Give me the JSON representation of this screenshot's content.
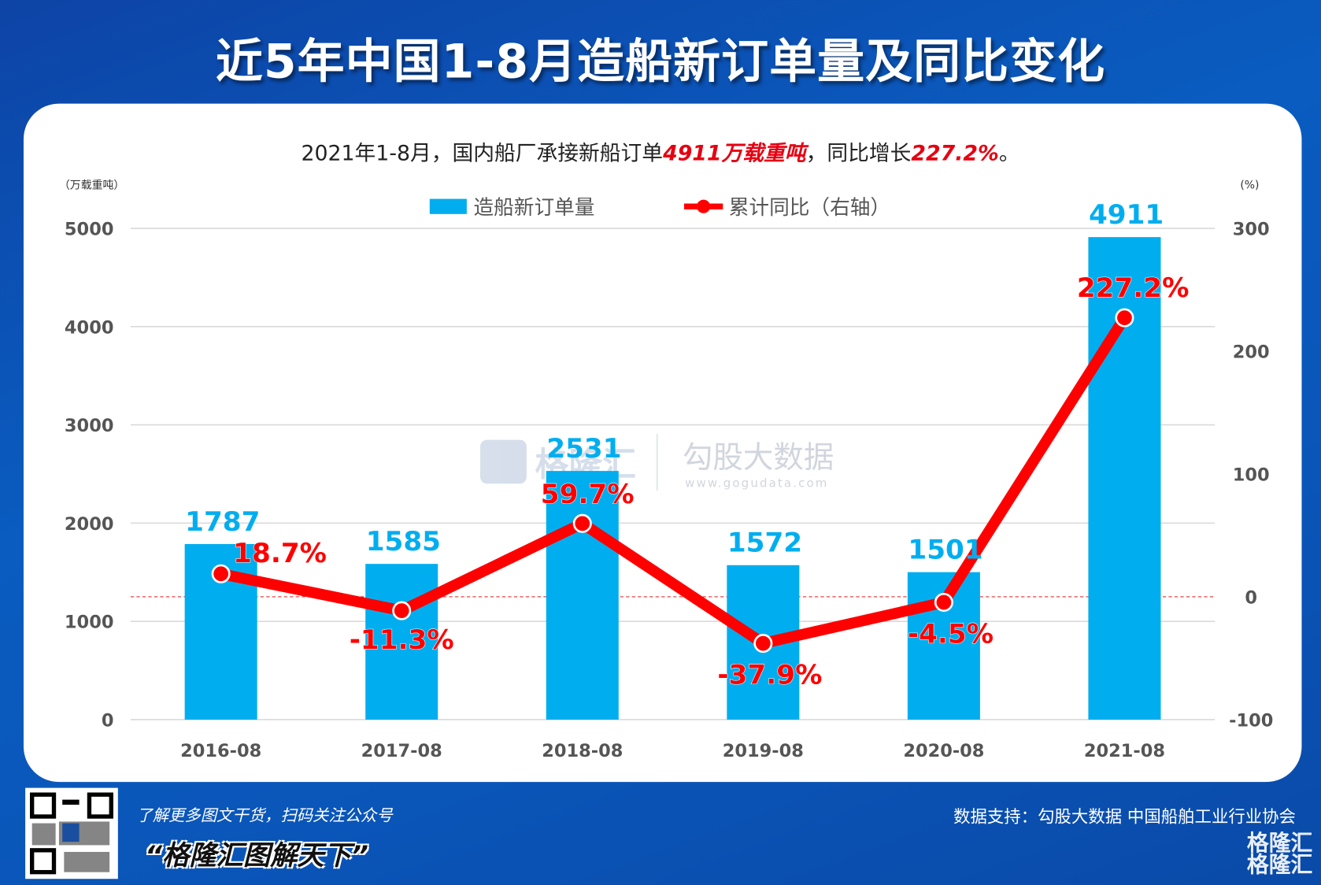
{
  "title": "近5年中国1-8月造船新订单量及同比变化",
  "subtitle": {
    "pre": "2021年1-8月，国内船厂承接新船订单",
    "hl1": "4911万载重吨",
    "mid": "，同比增长",
    "hl2": "227.2%",
    "post": "。"
  },
  "footer": {
    "promo": "了解更多图文干货，扫码关注公众号",
    "slogan": "“格隆汇图解天下”",
    "source": "数据支持：勾股大数据 中国船舶工业行业协会",
    "logo": "格隆汇"
  },
  "watermark": {
    "left": "格隆汇",
    "right": "勾股大数据",
    "url": "www.gogudata.com"
  },
  "colors": {
    "bar": "#00aeef",
    "line": "#ff0000",
    "background": "#0a55b8"
  },
  "chart_data": {
    "type": "bar+line",
    "categories": [
      "2016-08",
      "2017-08",
      "2018-08",
      "2019-08",
      "2020-08",
      "2021-08"
    ],
    "series": [
      {
        "name": "造船新订单量",
        "type": "bar",
        "axis": "left",
        "values": [
          1787,
          1585,
          2531,
          1572,
          1501,
          4911
        ],
        "labels": [
          "1787",
          "1585",
          "2531",
          "1572",
          "1501",
          "4911"
        ]
      },
      {
        "name": "累计同比（右轴）",
        "type": "line",
        "axis": "right",
        "values": [
          18.7,
          -11.3,
          59.7,
          -37.9,
          -4.5,
          227.2
        ],
        "labels": [
          "18.7%",
          "-11.3%",
          "59.7%",
          "-37.9%",
          "-4.5%",
          "227.2%"
        ]
      }
    ],
    "ylabel": "（万载重吨）",
    "y2label": "(%)",
    "ylim": [
      0,
      5000
    ],
    "yticks": [
      "0",
      "1000",
      "2000",
      "3000",
      "4000",
      "5000"
    ],
    "y2lim": [
      -100,
      300
    ],
    "y2ticks": [
      "-100",
      "0",
      "100",
      "200",
      "300"
    ],
    "grid": true,
    "legend": "top-center",
    "zero_reference_line": true
  }
}
